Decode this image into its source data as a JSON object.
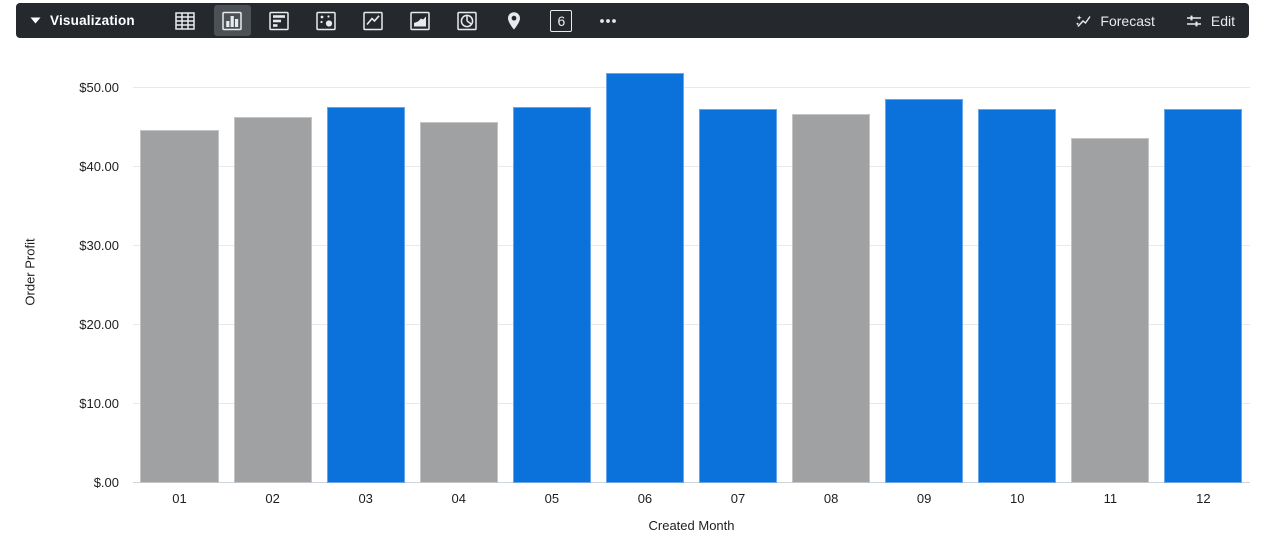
{
  "toolbar": {
    "title": "Visualization",
    "chart_types": [
      {
        "name": "table",
        "selected": false
      },
      {
        "name": "column",
        "selected": true
      },
      {
        "name": "bar",
        "selected": false
      },
      {
        "name": "scatter",
        "selected": false
      },
      {
        "name": "line",
        "selected": false
      },
      {
        "name": "area",
        "selected": false
      },
      {
        "name": "pie",
        "selected": false
      },
      {
        "name": "map",
        "selected": false
      },
      {
        "name": "single-value",
        "selected": false
      },
      {
        "name": "more",
        "selected": false
      }
    ],
    "single_value_glyph": "6",
    "forecast_label": "Forecast",
    "edit_label": "Edit"
  },
  "colors": {
    "toolbar_bg": "#25292E",
    "selected_icon_bg": "#4C5156",
    "icon_color": "#E8EAED",
    "bar_blue": "#0B72DC",
    "bar_gray": "#A0A1A2",
    "grid_line": "#E9E9E9",
    "axis_line": "#CDD5DE",
    "axis_text": "#1D1E20"
  },
  "chart_data": {
    "type": "bar",
    "title": "",
    "xlabel": "Created Month",
    "ylabel": "Order Profit",
    "categories": [
      "01",
      "02",
      "03",
      "04",
      "05",
      "06",
      "07",
      "08",
      "09",
      "10",
      "11",
      "12"
    ],
    "values": [
      44.6,
      46.3,
      47.5,
      45.6,
      47.5,
      51.9,
      47.3,
      46.7,
      48.6,
      47.3,
      43.6,
      47.3
    ],
    "bar_colors": [
      "gray",
      "gray",
      "blue",
      "gray",
      "blue",
      "blue",
      "blue",
      "gray",
      "blue",
      "blue",
      "gray",
      "blue"
    ],
    "palette": {
      "blue": "#0B72DC",
      "gray": "#A0A1A2"
    },
    "y_ticks": [
      {
        "value": 0,
        "label": "$.00"
      },
      {
        "value": 10,
        "label": "$10.00"
      },
      {
        "value": 20,
        "label": "$20.00"
      },
      {
        "value": 30,
        "label": "$30.00"
      },
      {
        "value": 40,
        "label": "$40.00"
      },
      {
        "value": 50,
        "label": "$50.00"
      }
    ],
    "ylim": [
      0,
      53.5
    ],
    "grid": true,
    "legend": "none"
  }
}
